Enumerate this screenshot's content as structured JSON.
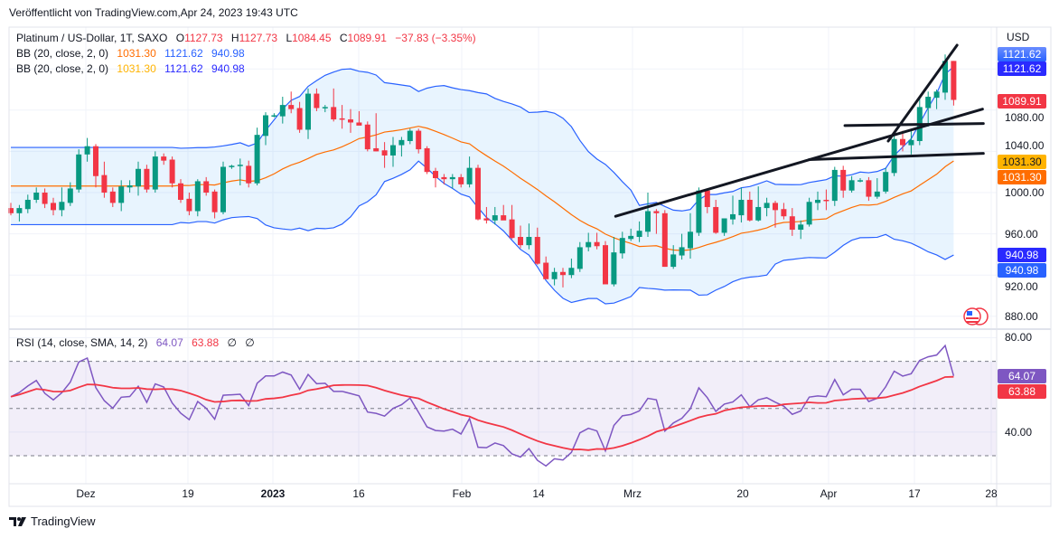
{
  "published": "Veröffentlicht von TradingView.com,Apr 24, 2023 19:43 UTC",
  "symbol": {
    "title": "Platinum / US-Dollar, 1T, SAXO",
    "o_label": "O",
    "o": "1127.73",
    "h_label": "H",
    "h": "1127.73",
    "l_label": "L",
    "l": "1084.45",
    "c_label": "C",
    "c": "1089.91",
    "change": "−37.83 (−3.35%)"
  },
  "bb1": {
    "label": "BB (20, close, 2, 0)",
    "basis": "1031.30",
    "upper": "1121.62",
    "lower": "940.98"
  },
  "bb2": {
    "label": "BB (20, close, 2, 0)",
    "basis": "1031.30",
    "upper": "1121.62",
    "lower": "940.98"
  },
  "rsi": {
    "label": "RSI (14, close, SMA, 14, 2)",
    "value": "64.07",
    "sma": "63.88",
    "na1": "∅",
    "na2": "∅"
  },
  "price_axis": {
    "currency": "USD",
    "labels": [
      "1080.00",
      "1040.00",
      "1000.00",
      "960.00",
      "920.00",
      "880.00"
    ],
    "tags": {
      "upper1": "1121.62",
      "upper2": "1121.62",
      "last": "1089.91",
      "basis1": "1031.30",
      "basis2": "1031.30",
      "lower1": "940.98",
      "lower2": "940.98"
    }
  },
  "rsi_axis": {
    "labels": [
      "80.00",
      "40.00"
    ],
    "tags": {
      "rsi": "64.07",
      "sma": "63.88"
    }
  },
  "time_axis": [
    "Dez",
    "19",
    "2023",
    "16",
    "Feb",
    "14",
    "Mrz",
    "20",
    "Apr",
    "17",
    "28"
  ],
  "footer": {
    "brand": "TradingView"
  },
  "colors": {
    "up": "#089981",
    "down": "#f23645",
    "bb_band": "#2962ff",
    "bb_basis": "#ff6d00",
    "rsi": "#7e57c2",
    "rsi_sma": "#f23645"
  },
  "chart_data": {
    "type": "candlestick",
    "price_range": [
      860,
      1150
    ],
    "rsi_levels": [
      70,
      50,
      30
    ],
    "ohlc": [
      [
        985,
        990,
        978,
        980
      ],
      [
        980,
        988,
        972,
        985
      ],
      [
        984,
        998,
        980,
        993
      ],
      [
        993,
        1005,
        990,
        1000
      ],
      [
        1000,
        1004,
        985,
        989
      ],
      [
        990,
        995,
        978,
        983
      ],
      [
        983,
        1005,
        977,
        991
      ],
      [
        990,
        1010,
        987,
        1004
      ],
      [
        1003,
        1042,
        1000,
        1037
      ],
      [
        1037,
        1053,
        1030,
        1045
      ],
      [
        1045,
        1047,
        1005,
        1016
      ],
      [
        1017,
        1030,
        995,
        1000
      ],
      [
        1001,
        1005,
        986,
        990
      ],
      [
        990,
        1012,
        982,
        1006
      ],
      [
        1005,
        1012,
        1000,
        1007
      ],
      [
        1006,
        1030,
        997,
        1023
      ],
      [
        1023,
        1027,
        1000,
        1003
      ],
      [
        1003,
        1040,
        1000,
        1035
      ],
      [
        1035,
        1038,
        1027,
        1031
      ],
      [
        1032,
        1035,
        1005,
        1009
      ],
      [
        1009,
        1013,
        990,
        993
      ],
      [
        994,
        1000,
        978,
        982
      ],
      [
        982,
        1013,
        977,
        1011
      ],
      [
        1011,
        1015,
        997,
        1000
      ],
      [
        1001,
        1003,
        975,
        981
      ],
      [
        981,
        1030,
        979,
        1025
      ],
      [
        1025,
        1027,
        1023,
        1026
      ],
      [
        1026,
        1033,
        1007,
        1027
      ],
      [
        1026,
        1031,
        1005,
        1009
      ],
      [
        1009,
        1063,
        1007,
        1056
      ],
      [
        1055,
        1078,
        1046,
        1075
      ],
      [
        1075,
        1077,
        1073,
        1075
      ],
      [
        1074,
        1093,
        1067,
        1085
      ],
      [
        1085,
        1098,
        1077,
        1081
      ],
      [
        1082,
        1088,
        1058,
        1061
      ],
      [
        1061,
        1101,
        1052,
        1096
      ],
      [
        1096,
        1101,
        1079,
        1082
      ],
      [
        1082,
        1085,
        1078,
        1083
      ],
      [
        1083,
        1101,
        1069,
        1071
      ],
      [
        1072,
        1085,
        1062,
        1071
      ],
      [
        1071,
        1081,
        1058,
        1068
      ],
      [
        1068,
        1079,
        1066,
        1065
      ],
      [
        1066,
        1069,
        1040,
        1042
      ],
      [
        1043,
        1077,
        1040,
        1040
      ],
      [
        1041,
        1049,
        1024,
        1036
      ],
      [
        1036,
        1054,
        1025,
        1046
      ],
      [
        1046,
        1054,
        1035,
        1051
      ],
      [
        1050,
        1062,
        1047,
        1060
      ],
      [
        1060,
        1062,
        1038,
        1042
      ],
      [
        1043,
        1045,
        1018,
        1020
      ],
      [
        1021,
        1024,
        1005,
        1014
      ],
      [
        1015,
        1018,
        1008,
        1013
      ],
      [
        1013,
        1018,
        1004,
        1015
      ],
      [
        1015,
        1018,
        1005,
        1008
      ],
      [
        1008,
        1035,
        1005,
        1024
      ],
      [
        1024,
        1027,
        973,
        974
      ],
      [
        975,
        986,
        970,
        973
      ],
      [
        973,
        986,
        969,
        978
      ],
      [
        978,
        988,
        975,
        973
      ],
      [
        974,
        988,
        955,
        956
      ],
      [
        957,
        968,
        946,
        949
      ],
      [
        949,
        970,
        945,
        957
      ],
      [
        957,
        966,
        930,
        931
      ],
      [
        932,
        938,
        918,
        916
      ],
      [
        916,
        927,
        910,
        923
      ],
      [
        923,
        927,
        908,
        920
      ],
      [
        920,
        936,
        917,
        927
      ],
      [
        926,
        952,
        923,
        947
      ],
      [
        947,
        961,
        943,
        952
      ],
      [
        952,
        961,
        945,
        948
      ],
      [
        949,
        953,
        912,
        911
      ],
      [
        911,
        957,
        909,
        942
      ],
      [
        941,
        962,
        936,
        956
      ],
      [
        955,
        965,
        953,
        958
      ],
      [
        957,
        972,
        952,
        963
      ],
      [
        962,
        1000,
        957,
        982
      ],
      [
        982,
        984,
        960,
        980
      ],
      [
        980,
        983,
        928,
        928
      ],
      [
        928,
        949,
        926,
        940
      ],
      [
        939,
        960,
        935,
        947
      ],
      [
        946,
        980,
        936,
        962
      ],
      [
        961,
        1005,
        958,
        1002
      ],
      [
        1002,
        1003,
        980,
        986
      ],
      [
        986,
        993,
        960,
        961
      ],
      [
        961,
        975,
        958,
        975
      ],
      [
        974,
        997,
        969,
        979
      ],
      [
        978,
        1005,
        971,
        993
      ],
      [
        993,
        1001,
        972,
        973
      ],
      [
        973,
        1006,
        972,
        986
      ],
      [
        985,
        995,
        977,
        990
      ],
      [
        990,
        992,
        966,
        983
      ],
      [
        984,
        990,
        974,
        977
      ],
      [
        977,
        985,
        958,
        964
      ],
      [
        964,
        973,
        955,
        969
      ],
      [
        969,
        995,
        967,
        991
      ],
      [
        990,
        1001,
        983,
        993
      ],
      [
        993,
        1003,
        983,
        992
      ],
      [
        992,
        1025,
        987,
        1022
      ],
      [
        1022,
        1026,
        995,
        1002
      ],
      [
        1002,
        1016,
        1000,
        1012
      ],
      [
        1012,
        1014,
        1010,
        1012
      ],
      [
        1012,
        1015,
        992,
        996
      ],
      [
        996,
        1014,
        994,
        1001
      ],
      [
        1001,
        1024,
        999,
        1020
      ],
      [
        1019,
        1058,
        1016,
        1052
      ],
      [
        1052,
        1060,
        1040,
        1046
      ],
      [
        1046,
        1060,
        1037,
        1051
      ],
      [
        1050,
        1092,
        1046,
        1083
      ],
      [
        1082,
        1098,
        1064,
        1093
      ],
      [
        1092,
        1100,
        1081,
        1098
      ],
      [
        1097,
        1134,
        1090,
        1127.73
      ],
      [
        1127.73,
        1127.73,
        1084.45,
        1089.91
      ]
    ],
    "trendlines": [
      {
        "from": [
          71.2,
          977
        ],
        "to": [
          114.4,
          1081
        ]
      },
      {
        "from": [
          98.2,
          1065
        ],
        "to": [
          114.5,
          1067
        ]
      },
      {
        "from": [
          94,
          1032
        ],
        "to": [
          114.5,
          1038
        ]
      },
      {
        "from": [
          103.3,
          1050
        ],
        "to": [
          111.4,
          1143
        ]
      }
    ]
  }
}
